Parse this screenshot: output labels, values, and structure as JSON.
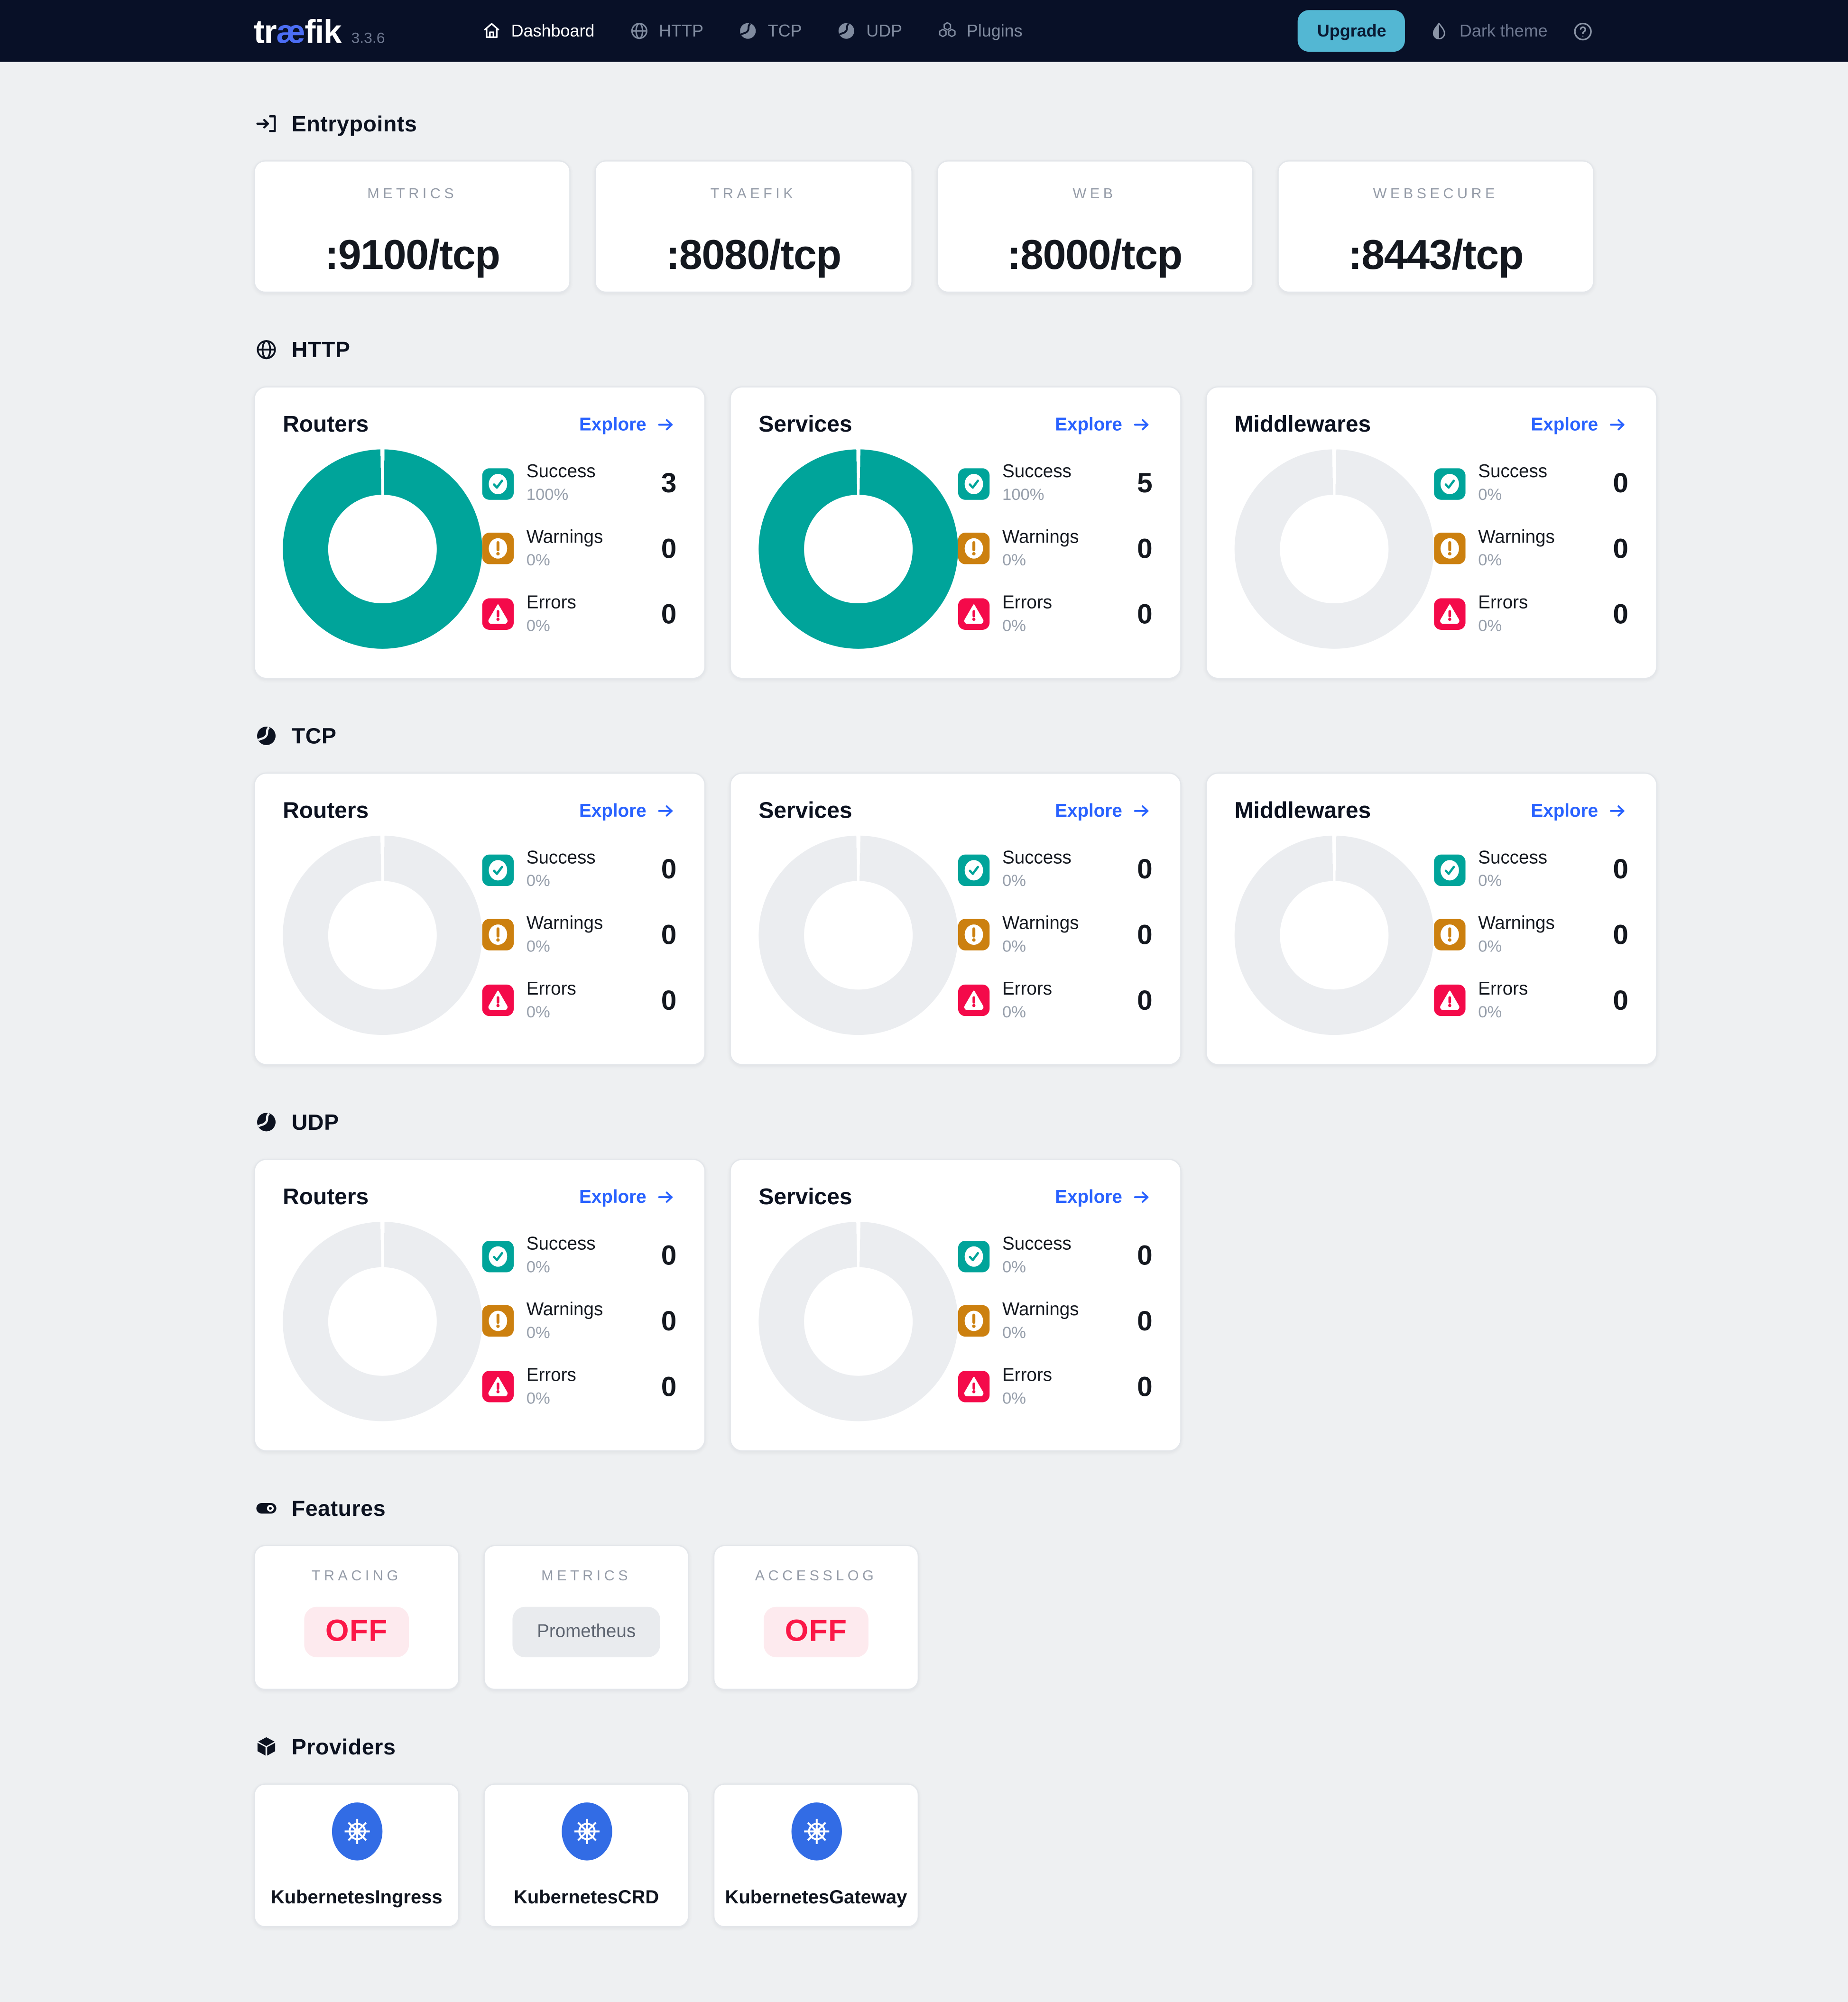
{
  "navbar": {
    "logo": {
      "prefix": "tr",
      "ae": "æ",
      "suffix": "fik"
    },
    "version": "3.3.6",
    "items": [
      {
        "label": "Dashboard",
        "icon": "home",
        "active": true
      },
      {
        "label": "HTTP",
        "icon": "globe",
        "active": false
      },
      {
        "label": "TCP",
        "icon": "pipe",
        "active": false
      },
      {
        "label": "UDP",
        "icon": "pipe",
        "active": false
      },
      {
        "label": "Plugins",
        "icon": "plugins",
        "active": false
      }
    ],
    "upgrade_label": "Upgrade",
    "theme_label": "Dark theme",
    "help_icon": "help-circle-icon"
  },
  "labels": {
    "explore": "Explore"
  },
  "colors": {
    "navbar_bg": "#081027",
    "accent_blue": "#2962ff",
    "success": "#00a49a",
    "warning": "#cc800f",
    "error": "#f40a4a",
    "upgrade_bg": "#53b7d3",
    "logo_ae": "#4c6ef5",
    "kubernetes_blue": "#326ce5",
    "off_text": "#fb1747",
    "off_bg": "#fdeaee",
    "neutral_badge_bg": "#e9ebee",
    "page_bg": "#eef0f2"
  },
  "sections": [
    {
      "id": "entrypoints",
      "title": "Entrypoints",
      "icon": "login",
      "kind": "entry",
      "cards": [
        {
          "label": "METRICS",
          "value": ":9100/tcp"
        },
        {
          "label": "TRAEFIK",
          "value": ":8080/tcp"
        },
        {
          "label": "WEB",
          "value": ":8000/tcp"
        },
        {
          "label": "WEBSECURE",
          "value": ":8443/tcp"
        }
      ]
    },
    {
      "id": "http",
      "title": "HTTP",
      "icon": "globe",
      "kind": "proto",
      "cards": [
        {
          "title": "Routers",
          "donut": "success",
          "stats": [
            {
              "kind": "success",
              "label": "Success",
              "pct": "100%",
              "count": "3"
            },
            {
              "kind": "warning",
              "label": "Warnings",
              "pct": "0%",
              "count": "0"
            },
            {
              "kind": "error",
              "label": "Errors",
              "pct": "0%",
              "count": "0"
            }
          ]
        },
        {
          "title": "Services",
          "donut": "success",
          "stats": [
            {
              "kind": "success",
              "label": "Success",
              "pct": "100%",
              "count": "5"
            },
            {
              "kind": "warning",
              "label": "Warnings",
              "pct": "0%",
              "count": "0"
            },
            {
              "kind": "error",
              "label": "Errors",
              "pct": "0%",
              "count": "0"
            }
          ]
        },
        {
          "title": "Middlewares",
          "donut": "empty",
          "stats": [
            {
              "kind": "success",
              "label": "Success",
              "pct": "0%",
              "count": "0"
            },
            {
              "kind": "warning",
              "label": "Warnings",
              "pct": "0%",
              "count": "0"
            },
            {
              "kind": "error",
              "label": "Errors",
              "pct": "0%",
              "count": "0"
            }
          ]
        }
      ]
    },
    {
      "id": "tcp",
      "title": "TCP",
      "icon": "pipe",
      "kind": "proto",
      "cards": [
        {
          "title": "Routers",
          "donut": "empty",
          "stats": [
            {
              "kind": "success",
              "label": "Success",
              "pct": "0%",
              "count": "0"
            },
            {
              "kind": "warning",
              "label": "Warnings",
              "pct": "0%",
              "count": "0"
            },
            {
              "kind": "error",
              "label": "Errors",
              "pct": "0%",
              "count": "0"
            }
          ]
        },
        {
          "title": "Services",
          "donut": "empty",
          "stats": [
            {
              "kind": "success",
              "label": "Success",
              "pct": "0%",
              "count": "0"
            },
            {
              "kind": "warning",
              "label": "Warnings",
              "pct": "0%",
              "count": "0"
            },
            {
              "kind": "error",
              "label": "Errors",
              "pct": "0%",
              "count": "0"
            }
          ]
        },
        {
          "title": "Middlewares",
          "donut": "empty",
          "stats": [
            {
              "kind": "success",
              "label": "Success",
              "pct": "0%",
              "count": "0"
            },
            {
              "kind": "warning",
              "label": "Warnings",
              "pct": "0%",
              "count": "0"
            },
            {
              "kind": "error",
              "label": "Errors",
              "pct": "0%",
              "count": "0"
            }
          ]
        }
      ]
    },
    {
      "id": "udp",
      "title": "UDP",
      "icon": "pipe",
      "kind": "proto",
      "cards": [
        {
          "title": "Routers",
          "donut": "empty",
          "stats": [
            {
              "kind": "success",
              "label": "Success",
              "pct": "0%",
              "count": "0"
            },
            {
              "kind": "warning",
              "label": "Warnings",
              "pct": "0%",
              "count": "0"
            },
            {
              "kind": "error",
              "label": "Errors",
              "pct": "0%",
              "count": "0"
            }
          ]
        },
        {
          "title": "Services",
          "donut": "empty",
          "stats": [
            {
              "kind": "success",
              "label": "Success",
              "pct": "0%",
              "count": "0"
            },
            {
              "kind": "warning",
              "label": "Warnings",
              "pct": "0%",
              "count": "0"
            },
            {
              "kind": "error",
              "label": "Errors",
              "pct": "0%",
              "count": "0"
            }
          ]
        }
      ]
    },
    {
      "id": "features",
      "title": "Features",
      "icon": "toggle",
      "kind": "feature",
      "cards": [
        {
          "label": "TRACING",
          "value": "OFF",
          "style": "off"
        },
        {
          "label": "METRICS",
          "value": "Prometheus",
          "style": "neutral"
        },
        {
          "label": "ACCESSLOG",
          "value": "OFF",
          "style": "off"
        }
      ]
    },
    {
      "id": "providers",
      "title": "Providers",
      "icon": "cube",
      "kind": "provider",
      "cards": [
        {
          "label": "KubernetesIngress",
          "icon": "kubernetes"
        },
        {
          "label": "KubernetesCRD",
          "icon": "kubernetes"
        },
        {
          "label": "KubernetesGateway",
          "icon": "kubernetes"
        }
      ]
    }
  ]
}
